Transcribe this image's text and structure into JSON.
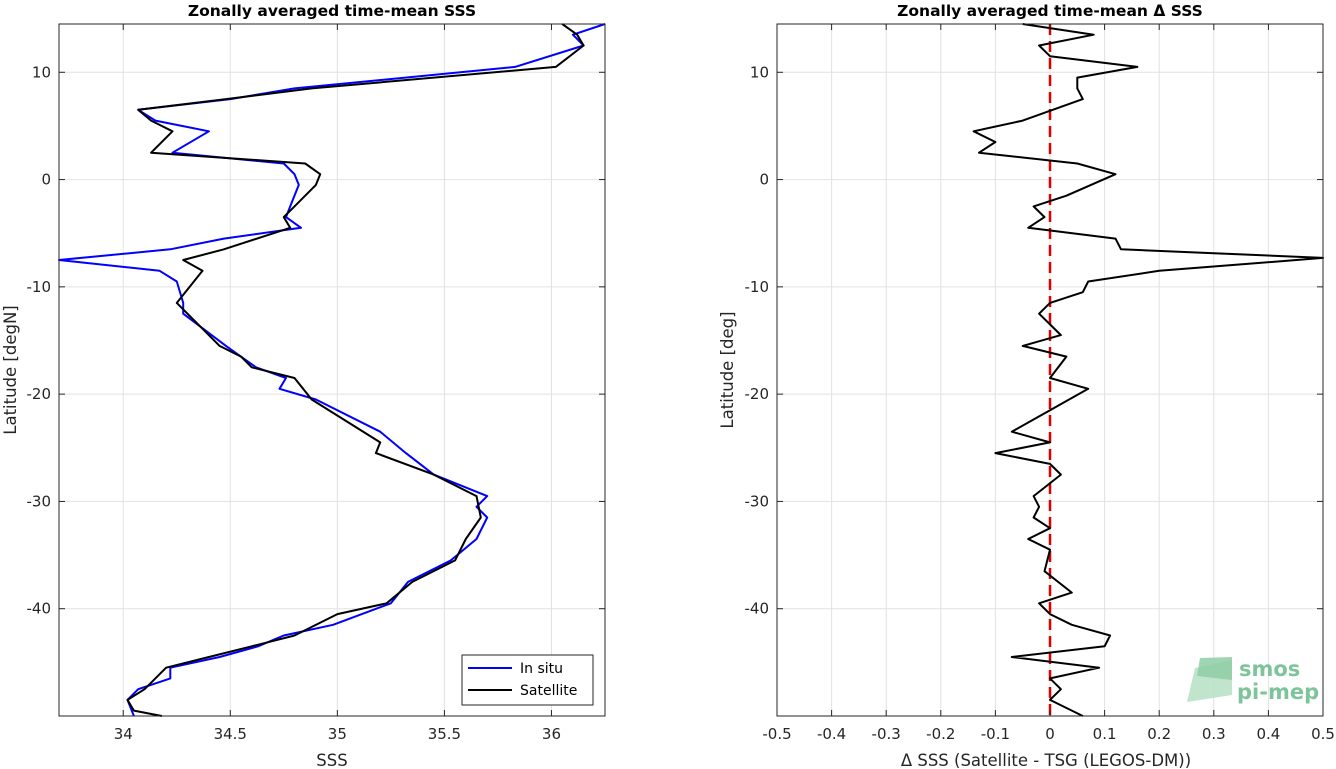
{
  "chart_data": [
    {
      "type": "line",
      "title": "Zonally averaged time-mean SSS",
      "xlabel": "SSS",
      "ylabel": "Latitude [degN]",
      "xlim": [
        33.7,
        36.25
      ],
      "ylim": [
        -50,
        14.5
      ],
      "xticks": [
        34,
        34.5,
        35,
        35.5,
        36
      ],
      "xtick_labels": [
        "34",
        "34.5",
        "35",
        "35.5",
        "36"
      ],
      "yticks": [
        10,
        0,
        -10,
        -20,
        -30,
        -40
      ],
      "ytick_labels": [
        "10",
        "0",
        "-10",
        "-20",
        "-30",
        "-40"
      ],
      "grid": true,
      "legend_position": "bottom-right",
      "series": [
        {
          "name": "In situ",
          "color": "#0000ff",
          "points": [
            [
              36.25,
              14.5
            ],
            [
              36.1,
              13.5
            ],
            [
              36.15,
              12.5
            ],
            [
              35.83,
              10.5
            ],
            [
              34.8,
              8.5
            ],
            [
              34.5,
              7.5
            ],
            [
              34.07,
              6.5
            ],
            [
              34.15,
              5.5
            ],
            [
              34.4,
              4.5
            ],
            [
              34.23,
              2.5
            ],
            [
              34.75,
              1.5
            ],
            [
              34.8,
              0.5
            ],
            [
              34.82,
              -0.5
            ],
            [
              34.78,
              -2.5
            ],
            [
              34.76,
              -3.5
            ],
            [
              34.83,
              -4.5
            ],
            [
              34.47,
              -5.5
            ],
            [
              34.22,
              -6.5
            ],
            [
              33.7,
              -7.5
            ],
            [
              34.17,
              -8.5
            ],
            [
              34.25,
              -9.5
            ],
            [
              34.28,
              -11.5
            ],
            [
              34.28,
              -12.5
            ],
            [
              34.48,
              -15.5
            ],
            [
              34.62,
              -17.5
            ],
            [
              34.76,
              -18.5
            ],
            [
              34.73,
              -19.5
            ],
            [
              34.9,
              -20.5
            ],
            [
              35.2,
              -23.5
            ],
            [
              35.32,
              -25.5
            ],
            [
              35.45,
              -27.5
            ],
            [
              35.7,
              -29.5
            ],
            [
              35.65,
              -30.5
            ],
            [
              35.7,
              -31.5
            ],
            [
              35.65,
              -33.5
            ],
            [
              35.53,
              -35.5
            ],
            [
              35.33,
              -37.5
            ],
            [
              35.25,
              -39.5
            ],
            [
              34.98,
              -41.5
            ],
            [
              34.75,
              -42.5
            ],
            [
              34.63,
              -43.5
            ],
            [
              34.45,
              -44.5
            ],
            [
              34.22,
              -45.5
            ],
            [
              34.22,
              -46.5
            ],
            [
              34.07,
              -47.5
            ],
            [
              34.02,
              -48.5
            ],
            [
              34.05,
              -50
            ]
          ]
        },
        {
          "name": "Satellite",
          "color": "#000000",
          "points": [
            [
              36.05,
              14.5
            ],
            [
              36.12,
              13.5
            ],
            [
              36.15,
              12.5
            ],
            [
              36.02,
              10.5
            ],
            [
              34.88,
              8.5
            ],
            [
              34.48,
              7.5
            ],
            [
              34.07,
              6.5
            ],
            [
              34.13,
              5.5
            ],
            [
              34.23,
              4.5
            ],
            [
              34.13,
              2.5
            ],
            [
              34.85,
              1.5
            ],
            [
              34.92,
              0.5
            ],
            [
              34.9,
              -0.5
            ],
            [
              34.8,
              -2.5
            ],
            [
              34.75,
              -3.5
            ],
            [
              34.78,
              -4.5
            ],
            [
              34.47,
              -6.5
            ],
            [
              34.28,
              -7.5
            ],
            [
              34.37,
              -8.5
            ],
            [
              34.33,
              -9.5
            ],
            [
              34.25,
              -11.5
            ],
            [
              34.3,
              -12.5
            ],
            [
              34.45,
              -15.5
            ],
            [
              34.55,
              -16.5
            ],
            [
              34.6,
              -17.5
            ],
            [
              34.8,
              -18.5
            ],
            [
              34.88,
              -20.5
            ],
            [
              35.2,
              -24.5
            ],
            [
              35.18,
              -25.5
            ],
            [
              35.45,
              -27.5
            ],
            [
              35.65,
              -29.5
            ],
            [
              35.67,
              -31.5
            ],
            [
              35.6,
              -33.5
            ],
            [
              35.55,
              -35.5
            ],
            [
              35.35,
              -37.5
            ],
            [
              35.23,
              -39.5
            ],
            [
              35.0,
              -40.5
            ],
            [
              34.8,
              -42.5
            ],
            [
              34.6,
              -43.5
            ],
            [
              34.4,
              -44.5
            ],
            [
              34.2,
              -45.5
            ],
            [
              34.1,
              -47.5
            ],
            [
              34.02,
              -48.5
            ],
            [
              34.05,
              -49.5
            ],
            [
              34.18,
              -50
            ]
          ]
        }
      ]
    },
    {
      "type": "line",
      "title": "Zonally averaged time-mean Δ SSS",
      "xlabel": "Δ SSS (Satellite - TSG (LEGOS-DM))",
      "ylabel": "Latitude [deg]",
      "xlim": [
        -0.5,
        0.5
      ],
      "ylim": [
        -50,
        14.5
      ],
      "xticks": [
        -0.5,
        -0.4,
        -0.3,
        -0.2,
        -0.1,
        0,
        0.1,
        0.2,
        0.3,
        0.4,
        0.5
      ],
      "xtick_labels": [
        "-0.5",
        "-0.4",
        "-0.3",
        "-0.2",
        "-0.1",
        "0",
        "0.1",
        "0.2",
        "0.3",
        "0.4",
        "0.5"
      ],
      "yticks": [
        10,
        0,
        -10,
        -20,
        -30,
        -40
      ],
      "ytick_labels": [
        "10",
        "0",
        "-10",
        "-20",
        "-30",
        "-40"
      ],
      "grid": true,
      "zero_line_color": "#dd0000",
      "series": [
        {
          "color": "#000000",
          "points": [
            [
              -0.05,
              14.5
            ],
            [
              0.08,
              13.5
            ],
            [
              -0.02,
              12.5
            ],
            [
              0.0,
              11.5
            ],
            [
              0.16,
              10.5
            ],
            [
              0.05,
              9.5
            ],
            [
              0.05,
              8.5
            ],
            [
              0.06,
              7.5
            ],
            [
              -0.05,
              5.5
            ],
            [
              -0.14,
              4.5
            ],
            [
              -0.1,
              3.5
            ],
            [
              -0.13,
              2.5
            ],
            [
              0.05,
              1.5
            ],
            [
              0.12,
              0.5
            ],
            [
              0.03,
              -1.5
            ],
            [
              -0.03,
              -2.5
            ],
            [
              -0.01,
              -3.5
            ],
            [
              -0.04,
              -4.5
            ],
            [
              0.12,
              -5.5
            ],
            [
              0.13,
              -6.5
            ],
            [
              0.5,
              -7.3
            ],
            [
              0.2,
              -8.5
            ],
            [
              0.07,
              -9.5
            ],
            [
              0.06,
              -10.5
            ],
            [
              0.0,
              -11.5
            ],
            [
              -0.02,
              -12.5
            ],
            [
              0.0,
              -13.5
            ],
            [
              0.02,
              -14.5
            ],
            [
              -0.05,
              -15.5
            ],
            [
              0.03,
              -16.5
            ],
            [
              0.0,
              -18.5
            ],
            [
              0.07,
              -19.5
            ],
            [
              0.0,
              -21.5
            ],
            [
              -0.07,
              -23.5
            ],
            [
              0.0,
              -24.5
            ],
            [
              -0.1,
              -25.5
            ],
            [
              0.0,
              -26.5
            ],
            [
              0.02,
              -27.5
            ],
            [
              -0.03,
              -29.5
            ],
            [
              -0.02,
              -30.5
            ],
            [
              -0.03,
              -31.5
            ],
            [
              0.0,
              -32.5
            ],
            [
              -0.04,
              -33.5
            ],
            [
              0.0,
              -34.5
            ],
            [
              -0.01,
              -36.5
            ],
            [
              0.04,
              -38.5
            ],
            [
              -0.02,
              -39.5
            ],
            [
              0.0,
              -40.5
            ],
            [
              0.04,
              -41.5
            ],
            [
              0.11,
              -42.5
            ],
            [
              0.1,
              -43.5
            ],
            [
              -0.07,
              -44.5
            ],
            [
              0.09,
              -45.5
            ],
            [
              0.0,
              -46.5
            ],
            [
              0.02,
              -47.5
            ],
            [
              0.0,
              -48.5
            ],
            [
              0.06,
              -50
            ]
          ]
        }
      ]
    }
  ],
  "logo": {
    "line1": "smos",
    "line2": "pi-mep",
    "color": "#7dc49a"
  }
}
